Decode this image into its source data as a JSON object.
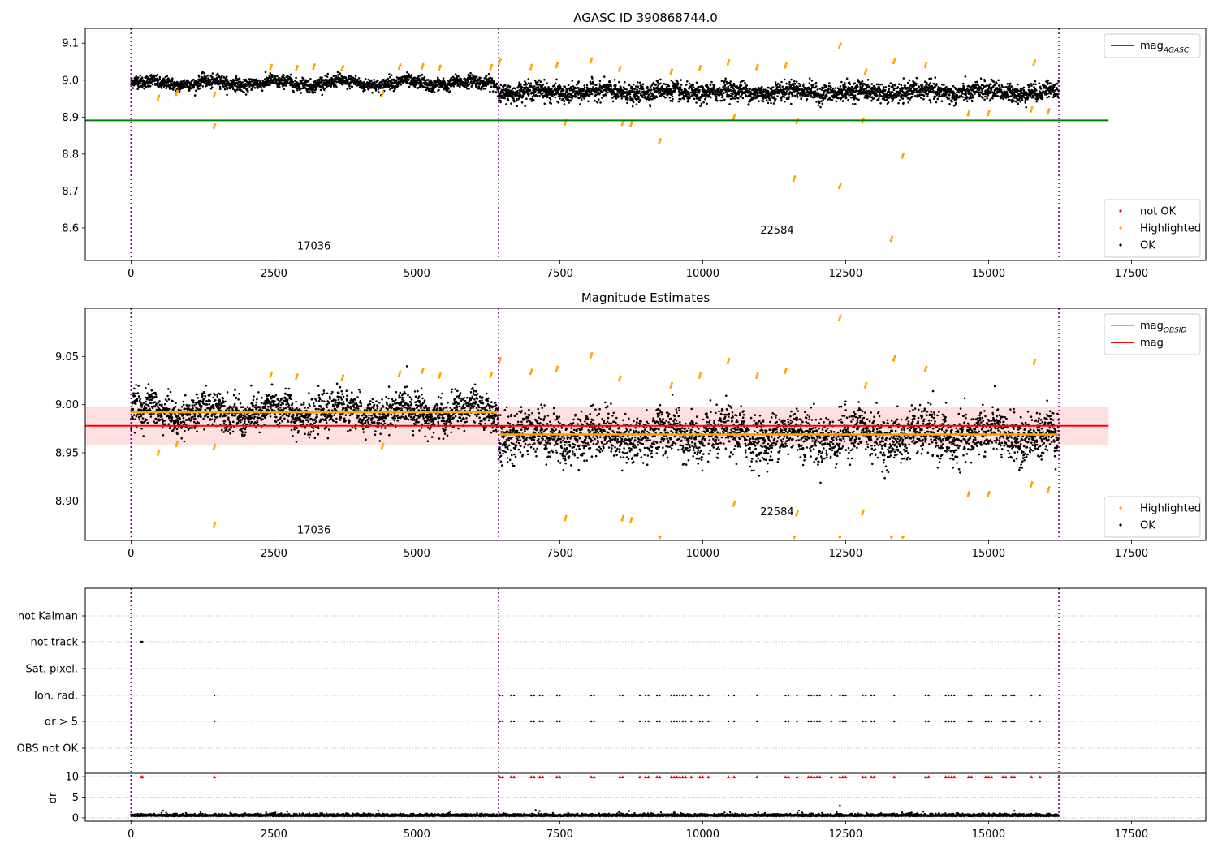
{
  "chart_data": [
    {
      "type": "scatter",
      "title": "AGASC ID 390868744.0",
      "xlim": [
        -800,
        18800
      ],
      "ylim": [
        8.512,
        9.14
      ],
      "xticks": [
        0,
        2500,
        5000,
        7500,
        10000,
        12500,
        15000,
        17500
      ],
      "yticks": [
        8.6,
        8.7,
        8.8,
        8.9,
        9.0,
        9.1
      ],
      "xtick_labels": [
        "0",
        "2500",
        "5000",
        "7500",
        "10000",
        "12500",
        "15000",
        "17500"
      ],
      "ytick_labels": [
        "8.6",
        "8.7",
        "8.8",
        "8.9",
        "9.0",
        "9.1"
      ],
      "obsid_boundaries": [
        0,
        6430,
        16230
      ],
      "obsid_labels": [
        {
          "text": "17036",
          "x": 3200,
          "y": 8.542
        },
        {
          "text": "22584",
          "x": 11300,
          "y": 8.585
        }
      ],
      "mag_agasc": 8.891,
      "mag_agasc_range": [
        -800,
        17100
      ],
      "legend_upper": {
        "location": "upper right",
        "entries": [
          {
            "label": "mag",
            "sub": "AGASC",
            "color": "#008000"
          }
        ]
      },
      "legend_lower": {
        "location": "lower right",
        "entries": [
          {
            "label": "not OK",
            "color": "#ff0000"
          },
          {
            "label": "Highlighted",
            "color": "#ffa500"
          },
          {
            "label": "OK",
            "color": "#000000"
          }
        ]
      },
      "ok_series": [
        {
          "x": [
            0,
            6430
          ],
          "mean": 8.992,
          "spread": 0.014
        },
        {
          "x": [
            6430,
            16230
          ],
          "mean": 8.968,
          "spread": 0.02
        }
      ],
      "highlighted_points": [
        [
          480,
          8.947
        ],
        [
          800,
          8.96
        ],
        [
          1460,
          8.871
        ],
        [
          1460,
          8.955
        ],
        [
          2450,
          9.03
        ],
        [
          2900,
          9.027
        ],
        [
          3200,
          9.031
        ],
        [
          3700,
          9.027
        ],
        [
          4400,
          8.957
        ],
        [
          4700,
          9.031
        ],
        [
          5100,
          9.032
        ],
        [
          5400,
          9.028
        ],
        [
          6300,
          9.03
        ],
        [
          6450,
          9.044
        ],
        [
          7000,
          9.03
        ],
        [
          7450,
          9.035
        ],
        [
          7600,
          8.88
        ],
        [
          8050,
          9.048
        ],
        [
          8550,
          9.025
        ],
        [
          8600,
          8.879
        ],
        [
          8750,
          8.876
        ],
        [
          9250,
          8.829
        ],
        [
          9450,
          9.018
        ],
        [
          9950,
          9.027
        ],
        [
          10450,
          9.043
        ],
        [
          10550,
          8.895
        ],
        [
          10950,
          9.03
        ],
        [
          11450,
          9.034
        ],
        [
          11600,
          8.728
        ],
        [
          11650,
          8.884
        ],
        [
          12400,
          9.088
        ],
        [
          12400,
          8.708
        ],
        [
          12800,
          8.885
        ],
        [
          12850,
          9.018
        ],
        [
          13300,
          8.565
        ],
        [
          13350,
          9.046
        ],
        [
          13500,
          8.79
        ],
        [
          13900,
          9.035
        ],
        [
          14650,
          8.905
        ],
        [
          15000,
          8.905
        ],
        [
          15750,
          8.915
        ],
        [
          15800,
          9.042
        ],
        [
          16050,
          8.91
        ]
      ]
    },
    {
      "type": "scatter",
      "title": "Magnitude Estimates",
      "xlim": [
        -800,
        18800
      ],
      "ylim": [
        8.859,
        9.1
      ],
      "xticks": [
        0,
        2500,
        5000,
        7500,
        10000,
        12500,
        15000,
        17500
      ],
      "yticks": [
        8.9,
        8.95,
        9.0,
        9.05
      ],
      "xtick_labels": [
        "0",
        "2500",
        "5000",
        "7500",
        "10000",
        "12500",
        "15000",
        "17500"
      ],
      "ytick_labels": [
        "8.90",
        "8.95",
        "9.00",
        "9.05"
      ],
      "obsid_boundaries": [
        0,
        6430,
        16230
      ],
      "obsid_labels": [
        {
          "text": "17036",
          "x": 3200,
          "y": 8.866
        },
        {
          "text": "22584",
          "x": 11300,
          "y": 8.885
        }
      ],
      "mag": 8.978,
      "mag_band": [
        8.958,
        8.998
      ],
      "mag_range": [
        -800,
        17100
      ],
      "mag_obsid": [
        {
          "x": [
            0,
            6430
          ],
          "value": 8.992
        },
        {
          "x": [
            6430,
            16230
          ],
          "value": 8.969
        }
      ],
      "legend_upper": {
        "location": "upper right",
        "entries": [
          {
            "label": "mag",
            "sub": "OBSID",
            "color": "#ffa500"
          },
          {
            "label": "mag",
            "color": "#ff0000"
          }
        ]
      },
      "legend_lower": {
        "location": "lower right",
        "entries": [
          {
            "label": "Highlighted",
            "color": "#ffa500"
          },
          {
            "label": "OK",
            "color": "#000000"
          }
        ]
      },
      "ok_series": [
        {
          "x": [
            0,
            6430
          ],
          "mean": 8.992,
          "spread": 0.015
        },
        {
          "x": [
            6430,
            16230
          ],
          "mean": 8.968,
          "spread": 0.02
        }
      ],
      "highlighted_points": [
        [
          480,
          8.948
        ],
        [
          800,
          8.957
        ],
        [
          1460,
          8.873
        ],
        [
          1460,
          8.954
        ],
        [
          2450,
          9.029
        ],
        [
          2900,
          9.027
        ],
        [
          3700,
          9.026
        ],
        [
          4400,
          8.955
        ],
        [
          4700,
          9.03
        ],
        [
          5100,
          9.033
        ],
        [
          5400,
          9.028
        ],
        [
          6300,
          9.029
        ],
        [
          6450,
          9.044
        ],
        [
          7000,
          9.032
        ],
        [
          7450,
          9.035
        ],
        [
          7600,
          8.88
        ],
        [
          8050,
          9.049
        ],
        [
          8550,
          9.025
        ],
        [
          8600,
          8.88
        ],
        [
          8750,
          8.878
        ],
        [
          9450,
          9.018
        ],
        [
          9950,
          9.028
        ],
        [
          10450,
          9.043
        ],
        [
          10550,
          8.895
        ],
        [
          10950,
          9.028
        ],
        [
          11450,
          9.033
        ],
        [
          11650,
          8.885
        ],
        [
          12400,
          9.088
        ],
        [
          12800,
          8.886
        ],
        [
          12850,
          9.018
        ],
        [
          13350,
          9.046
        ],
        [
          13900,
          9.035
        ],
        [
          14650,
          8.905
        ],
        [
          15000,
          8.905
        ],
        [
          15750,
          8.915
        ],
        [
          15800,
          9.042
        ],
        [
          16050,
          8.91
        ]
      ],
      "offscale_points": [
        9250,
        11600,
        12400,
        13300,
        13500
      ]
    },
    {
      "type": "scatter",
      "xlim": [
        -800,
        18800
      ],
      "flag_labels": [
        "not Kalman",
        "not track",
        "Sat. pixel.",
        "Ion. rad.",
        "dr > 5",
        "OBS not OK"
      ],
      "obsid_boundaries": [
        0,
        6430,
        16230
      ],
      "flag_points": {
        "not track": [
          180,
          200
        ],
        "Ion. rad.": [
          1460,
          6450,
          6500,
          6650,
          6700,
          7000,
          7050,
          7150,
          7200,
          7450,
          7500,
          8050,
          8100,
          8550,
          8600,
          8900,
          9000,
          9050,
          9200,
          9250,
          9450,
          9500,
          9550,
          9600,
          9650,
          9700,
          9800,
          9950,
          10000,
          10100,
          10450,
          10550,
          10950,
          11450,
          11500,
          11650,
          11850,
          11900,
          11950,
          12000,
          12050,
          12250,
          12400,
          12450,
          12500,
          12800,
          12850,
          12950,
          13000,
          13350,
          13900,
          13950,
          14250,
          14300,
          14350,
          14400,
          14650,
          14700,
          14950,
          15000,
          15050,
          15250,
          15300,
          15400,
          15450,
          15750,
          15900
        ],
        "dr > 5": [
          1460,
          6450,
          6500,
          6650,
          6700,
          7000,
          7050,
          7150,
          7200,
          7450,
          7500,
          8050,
          8100,
          8550,
          8600,
          8900,
          9000,
          9050,
          9200,
          9250,
          9450,
          9500,
          9550,
          9600,
          9650,
          9700,
          9800,
          9950,
          10000,
          10100,
          10450,
          10550,
          10950,
          11450,
          11500,
          11650,
          11850,
          11900,
          11950,
          12000,
          12050,
          12250,
          12400,
          12450,
          12500,
          12800,
          12850,
          12950,
          13000,
          13350,
          13900,
          13950,
          14250,
          14300,
          14350,
          14400,
          14650,
          14700,
          14950,
          15000,
          15050,
          15250,
          15300,
          15400,
          15450,
          15750,
          15900
        ]
      },
      "dr": {
        "ylim": [
          -0.8,
          10.8
        ],
        "yticks": [
          0,
          5,
          10
        ],
        "ytick_labels": [
          "0",
          "5",
          "10"
        ],
        "ylabel": "dr",
        "baseline": 0.4,
        "high_red_points": [
          180,
          200,
          1460,
          6450,
          6500,
          6650,
          6700,
          7000,
          7050,
          7150,
          7200,
          7450,
          7500,
          8050,
          8100,
          8550,
          8600,
          8900,
          9000,
          9050,
          9200,
          9250,
          9450,
          9500,
          9550,
          9600,
          9650,
          9700,
          9800,
          9950,
          10000,
          10100,
          10450,
          10550,
          10950,
          11450,
          11500,
          11650,
          11850,
          11900,
          11950,
          12000,
          12050,
          12250,
          12400,
          12450,
          12500,
          12800,
          12850,
          12950,
          13000,
          13350,
          13900,
          13950,
          14250,
          14300,
          14350,
          14400,
          14650,
          14700,
          14950,
          15000,
          15050,
          15250,
          15300,
          15400,
          15450,
          15750,
          15900,
          16230
        ],
        "mid_red_points": [
          [
            12400,
            3.0
          ]
        ]
      },
      "xticks": [
        0,
        2500,
        5000,
        7500,
        10000,
        12500,
        15000,
        17500
      ],
      "xtick_labels": [
        "0",
        "2500",
        "5000",
        "7500",
        "10000",
        "12500",
        "15000",
        "17500"
      ]
    }
  ]
}
